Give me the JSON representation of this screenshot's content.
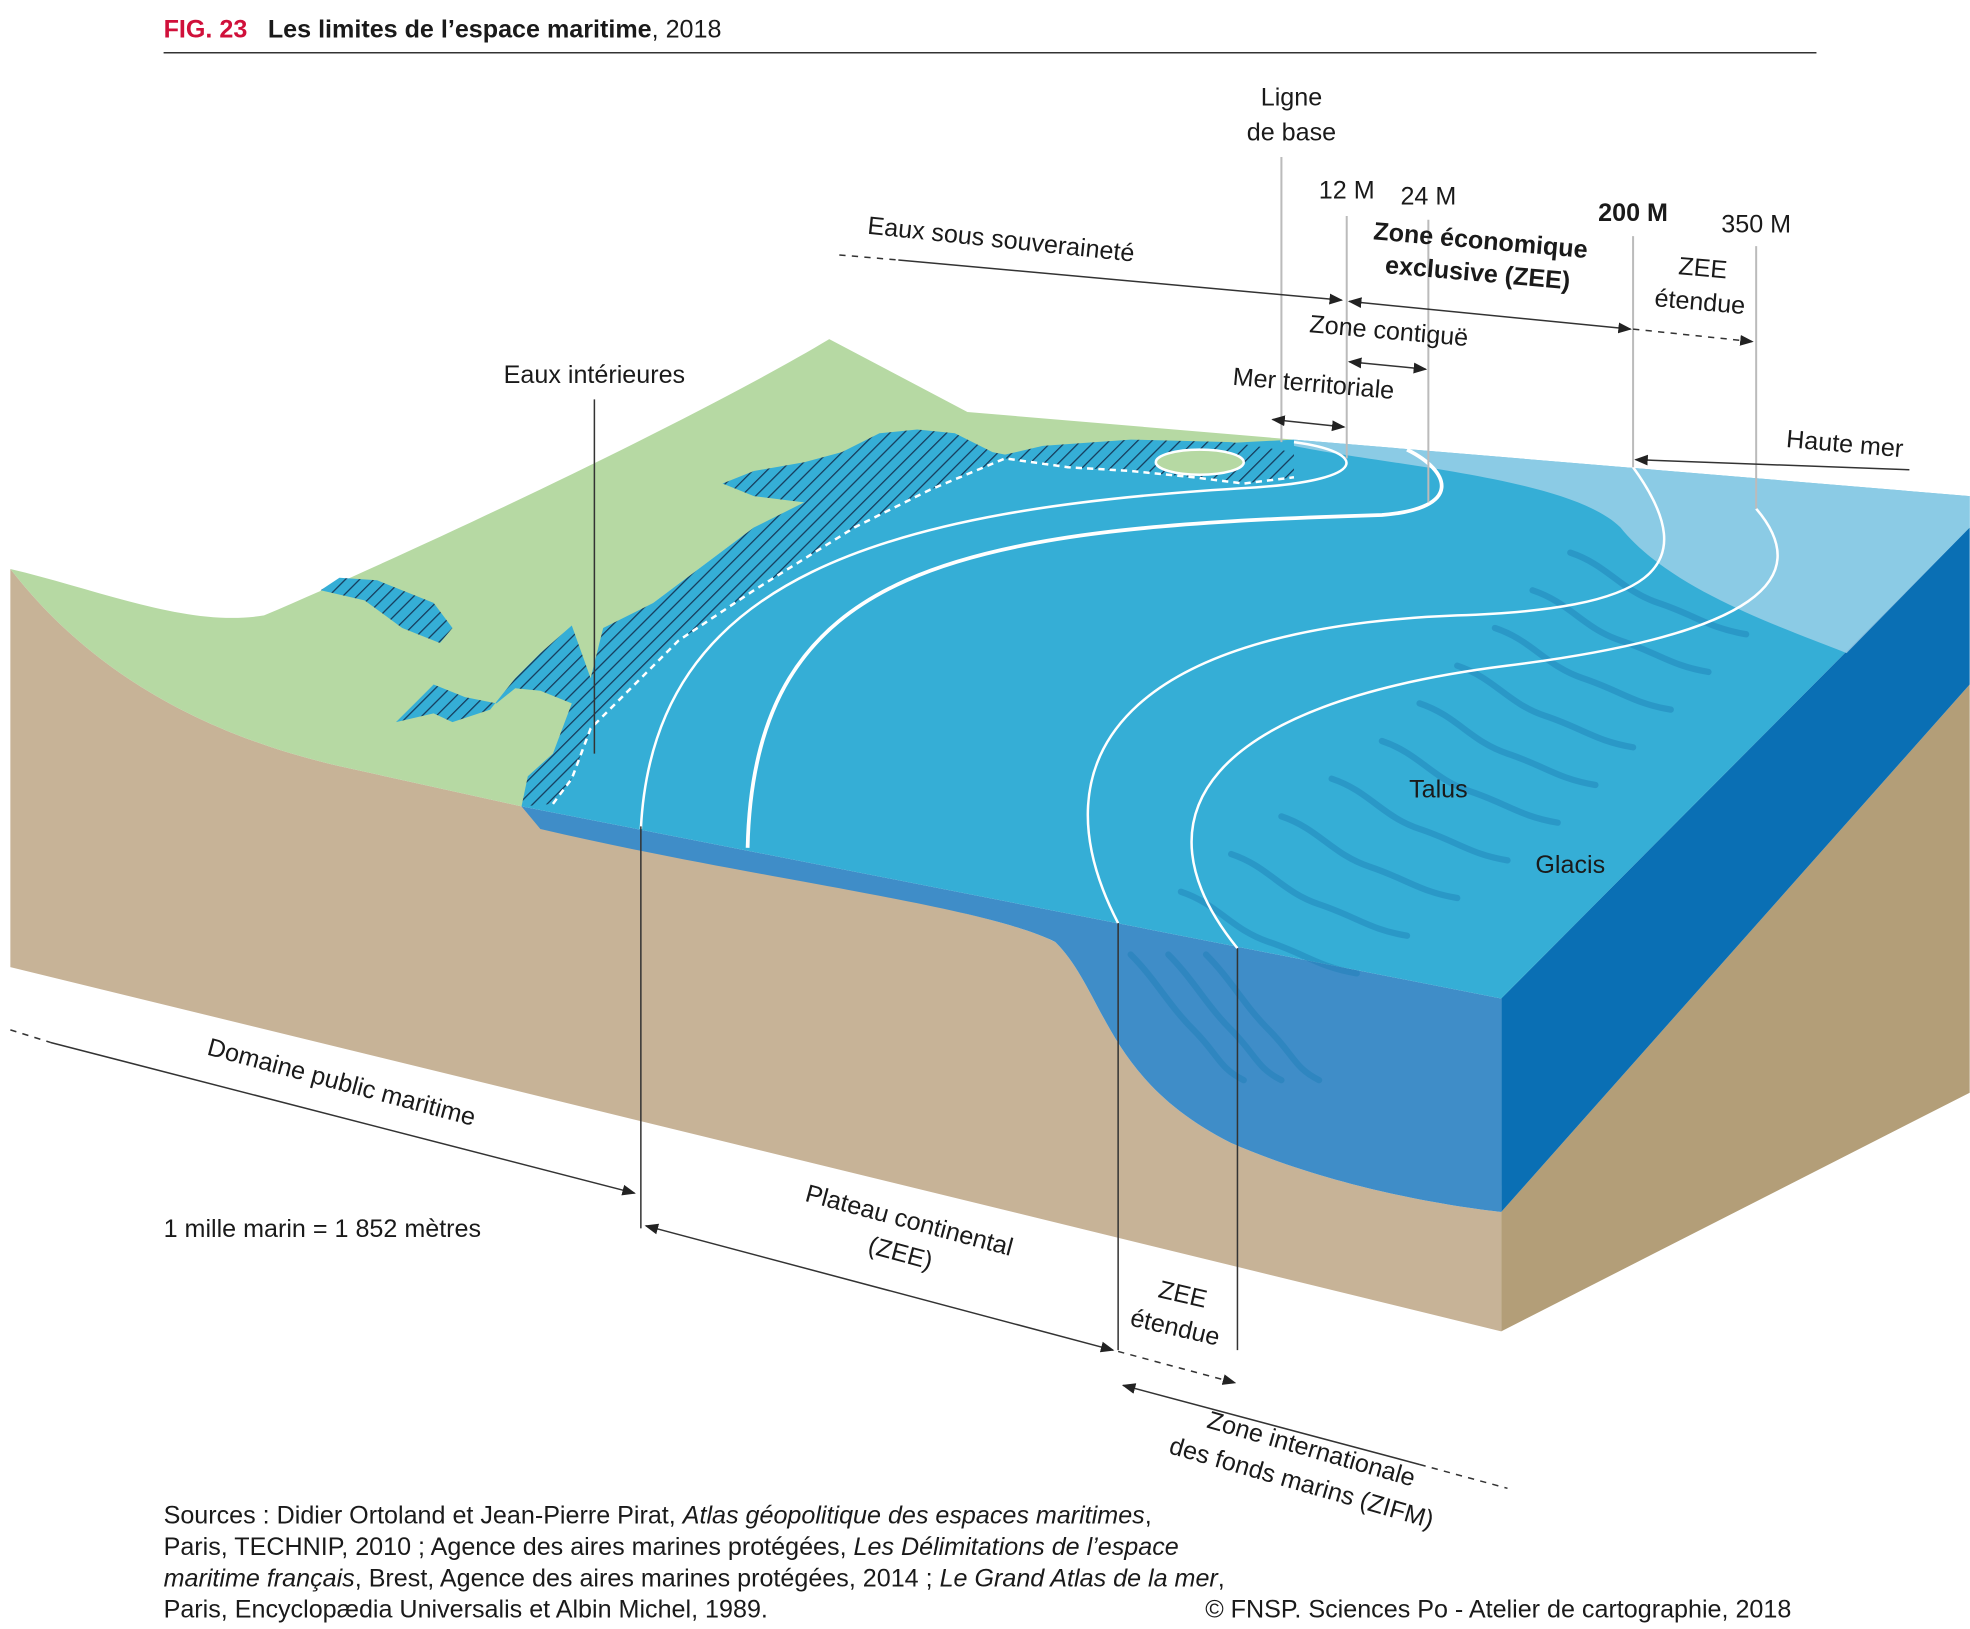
{
  "header": {
    "fig": "FIG. 23",
    "title": "Les limites de l’espace maritime",
    "subtitle": ", 2018"
  },
  "labels": [
    {
      "lines": [
        "Ligne",
        "de base"
      ]
    },
    {
      "lines": [
        "12 M"
      ]
    },
    {
      "lines": [
        "24 M"
      ]
    },
    {
      "lines": [
        "200 M"
      ]
    },
    {
      "lines": [
        "350 M"
      ]
    },
    {
      "lines": [
        "Eaux sous souveraineté"
      ]
    },
    {
      "lines": [
        "Zone économique",
        "exclusive (ZEE)"
      ]
    },
    {
      "lines": [
        "ZEE",
        "étendue"
      ]
    },
    {
      "lines": [
        "Zone contiguë"
      ]
    },
    {
      "lines": [
        "Mer territoriale"
      ]
    },
    {
      "lines": [
        "Eaux intérieures"
      ]
    },
    {
      "lines": [
        "Haute mer"
      ]
    },
    {
      "lines": [
        "Talus"
      ]
    },
    {
      "lines": [
        "Glacis"
      ]
    },
    {
      "lines": [
        "Domaine public maritime"
      ]
    },
    {
      "lines": [
        "1 mille marin = 1 852 mètres"
      ]
    },
    {
      "lines": [
        "Plateau continental",
        "(ZEE)"
      ]
    },
    {
      "lines": [
        "ZEE",
        "étendue"
      ]
    },
    {
      "lines": [
        "Zone internationale",
        "des fonds marins (ZIFM)"
      ]
    }
  ],
  "footer": {
    "sources": [
      [
        "Sources : Didier Ortoland et Jean-Pierre Pirat, ",
        "Atlas géopolitique des espaces maritimes",
        ","
      ],
      [
        "Paris, TECHNIP, 2010 ; Agence des aires marines protégées, ",
        "Les Délimitations de l’espace"
      ],
      [
        "maritime français",
        ", Brest, Agence des aires marines protégées, 2014 ; ",
        "Le Grand Atlas de la mer",
        ","
      ],
      [
        "Paris, Encyclopædia Universalis et Albin Michel, 1989."
      ]
    ],
    "credit": "© FNSP. Sciences Po - Atelier de cartographie, 2018"
  }
}
